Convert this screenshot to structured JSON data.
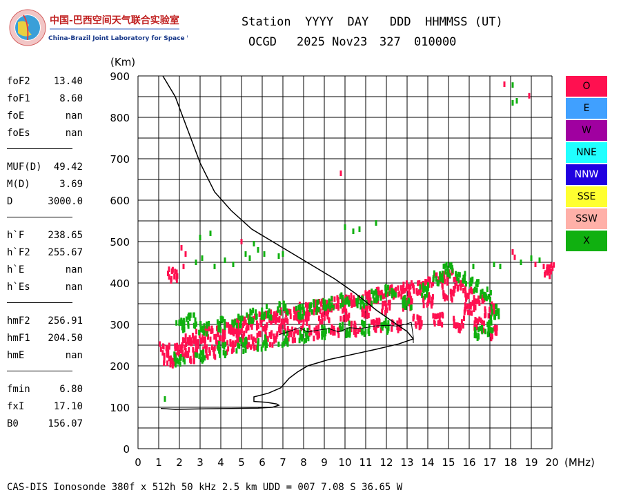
{
  "logo": {
    "title_cn": "中国-巴西空间天气联合实验室",
    "title_en": "China-Brazil Joint Laboratory for Space Weather"
  },
  "header": {
    "line1": "Station  YYYY  DAY   DDD  HHMMSS (UT)",
    "station": "OCGD",
    "date": "2025 Nov23",
    "doy": "327",
    "time": "010000"
  },
  "params": [
    {
      "group": 1,
      "label": "foF2",
      "value": "13.40"
    },
    {
      "group": 1,
      "label": "foF1",
      "value": "8.60"
    },
    {
      "group": 1,
      "label": "foE",
      "value": "nan"
    },
    {
      "group": 1,
      "label": "foEs",
      "value": "nan"
    },
    {
      "group": 2,
      "label": "MUF(D)",
      "value": "49.42"
    },
    {
      "group": 2,
      "label": "M(D)",
      "value": "3.69"
    },
    {
      "group": 2,
      "label": "D",
      "value": "3000.0"
    },
    {
      "group": 3,
      "label": "h`F",
      "value": "238.65"
    },
    {
      "group": 3,
      "label": "h`F2",
      "value": "255.67"
    },
    {
      "group": 3,
      "label": "h`E",
      "value": "nan"
    },
    {
      "group": 3,
      "label": "h`Es",
      "value": "nan"
    },
    {
      "group": 4,
      "label": "hmF2",
      "value": "256.91"
    },
    {
      "group": 4,
      "label": "hmF1",
      "value": "204.50"
    },
    {
      "group": 4,
      "label": "hmE",
      "value": "nan"
    },
    {
      "group": 5,
      "label": "fmin",
      "value": "6.80"
    },
    {
      "group": 5,
      "label": "fxI",
      "value": "17.10"
    },
    {
      "group": 5,
      "label": "B0",
      "value": "156.07"
    }
  ],
  "legend": [
    {
      "label": "O",
      "color": "#ff1050"
    },
    {
      "label": "E",
      "color": "#40a0ff"
    },
    {
      "label": "W",
      "color": "#a000a0"
    },
    {
      "label": "NNE",
      "color": "#20ffff"
    },
    {
      "label": "NNW",
      "color": "#2000e0"
    },
    {
      "label": "SSE",
      "color": "#ffff30"
    },
    {
      "label": "SSW",
      "color": "#ffb0a8"
    },
    {
      "label": "X",
      "color": "#10b010"
    }
  ],
  "footer": "CAS-DIS Ionosonde 380f x 512h 50 kHz 2.5 km UDD = 007 7.08 S 36.65 W",
  "chart_data": {
    "type": "scatter",
    "xlabel": "(MHz)",
    "ylabel": "(Km)",
    "xlim": [
      0,
      20
    ],
    "ylim": [
      0,
      900
    ],
    "xticks": [
      0,
      1,
      2,
      3,
      4,
      5,
      6,
      7,
      8,
      9,
      10,
      11,
      12,
      13,
      14,
      15,
      16,
      17,
      18,
      19,
      20
    ],
    "yticks": [
      0,
      100,
      200,
      300,
      400,
      500,
      600,
      700,
      800,
      900
    ],
    "grid": true,
    "legend_position": "right",
    "series": [
      {
        "name": "O",
        "color": "#ff1050",
        "points": [
          [
            1.3,
            240
          ],
          [
            2.1,
            250
          ],
          [
            2.5,
            262
          ],
          [
            3.0,
            270
          ],
          [
            3.5,
            278
          ],
          [
            4.0,
            285
          ],
          [
            4.5,
            292
          ],
          [
            5.0,
            300
          ],
          [
            5.5,
            305
          ],
          [
            6.0,
            312
          ],
          [
            6.5,
            318
          ],
          [
            7.0,
            322
          ],
          [
            7.5,
            328
          ],
          [
            8.0,
            335
          ],
          [
            8.5,
            340
          ],
          [
            9.0,
            345
          ],
          [
            9.5,
            350
          ],
          [
            10.0,
            355
          ],
          [
            10.5,
            360
          ],
          [
            11.0,
            365
          ],
          [
            11.5,
            370
          ],
          [
            12.0,
            375
          ],
          [
            12.5,
            380
          ],
          [
            13.0,
            385
          ],
          [
            13.5,
            390
          ],
          [
            14.0,
            398
          ],
          [
            14.5,
            405
          ],
          [
            15.0,
            415
          ],
          [
            15.5,
            395
          ],
          [
            16.0,
            375
          ],
          [
            16.5,
            355
          ],
          [
            17.0,
            335
          ],
          [
            1.5,
            215
          ],
          [
            2.5,
            225
          ],
          [
            3.5,
            235
          ],
          [
            4.5,
            245
          ],
          [
            5.5,
            255
          ],
          [
            6.5,
            265
          ],
          [
            7.5,
            275
          ],
          [
            8.5,
            280
          ],
          [
            9.5,
            285
          ],
          [
            10.5,
            290
          ],
          [
            11.5,
            295
          ],
          [
            12.5,
            300
          ],
          [
            13.5,
            305
          ],
          [
            14.5,
            310
          ],
          [
            15.5,
            300
          ],
          [
            16.5,
            300
          ],
          [
            2.0,
            235
          ],
          [
            3.0,
            250
          ],
          [
            4.0,
            262
          ],
          [
            5.0,
            272
          ],
          [
            6.0,
            285
          ],
          [
            7.0,
            295
          ],
          [
            8.0,
            305
          ],
          [
            9.0,
            315
          ],
          [
            10.0,
            322
          ],
          [
            11.0,
            330
          ],
          [
            12.0,
            340
          ],
          [
            13.0,
            350
          ],
          [
            14.0,
            360
          ],
          [
            15.0,
            365
          ],
          [
            16.0,
            340
          ],
          [
            2.1,
            485
          ],
          [
            2.3,
            470
          ],
          [
            2.2,
            440
          ],
          [
            1.7,
            420
          ],
          [
            5.0,
            500
          ],
          [
            9.8,
            665
          ],
          [
            17.7,
            880
          ],
          [
            18.9,
            852
          ],
          [
            18.1,
            475
          ],
          [
            18.2,
            462
          ],
          [
            19.2,
            445
          ],
          [
            19.6,
            440
          ],
          [
            19.9,
            430
          ],
          [
            17.1,
            280
          ]
        ]
      },
      {
        "name": "X",
        "color": "#10b010",
        "points": [
          [
            1.3,
            120
          ],
          [
            2.1,
            300
          ],
          [
            2.6,
            310
          ],
          [
            3.2,
            290
          ],
          [
            4.0,
            300
          ],
          [
            4.8,
            310
          ],
          [
            5.5,
            320
          ],
          [
            6.2,
            330
          ],
          [
            7.0,
            340
          ],
          [
            7.8,
            330
          ],
          [
            8.5,
            340
          ],
          [
            9.2,
            350
          ],
          [
            10.0,
            360
          ],
          [
            10.8,
            355
          ],
          [
            11.5,
            365
          ],
          [
            12.2,
            380
          ],
          [
            13.0,
            350
          ],
          [
            13.8,
            380
          ],
          [
            14.5,
            410
          ],
          [
            15.0,
            430
          ],
          [
            15.6,
            410
          ],
          [
            16.2,
            395
          ],
          [
            16.8,
            375
          ],
          [
            17.3,
            330
          ],
          [
            17.0,
            290
          ],
          [
            16.5,
            280
          ],
          [
            2.0,
            215
          ],
          [
            3.0,
            225
          ],
          [
            4.0,
            240
          ],
          [
            5.0,
            250
          ],
          [
            6.0,
            255
          ],
          [
            7.0,
            265
          ],
          [
            8.0,
            275
          ],
          [
            9.0,
            280
          ],
          [
            10.0,
            288
          ],
          [
            11.0,
            290
          ],
          [
            12.0,
            295
          ],
          [
            3.0,
            510
          ],
          [
            3.5,
            520
          ],
          [
            2.8,
            450
          ],
          [
            3.1,
            460
          ],
          [
            3.7,
            440
          ],
          [
            4.2,
            455
          ],
          [
            4.6,
            445
          ],
          [
            5.2,
            470
          ],
          [
            5.4,
            460
          ],
          [
            5.6,
            495
          ],
          [
            5.8,
            480
          ],
          [
            6.1,
            470
          ],
          [
            6.8,
            465
          ],
          [
            7.0,
            470
          ],
          [
            10.0,
            535
          ],
          [
            10.4,
            525
          ],
          [
            10.7,
            530
          ],
          [
            11.5,
            545
          ],
          [
            16.2,
            440
          ],
          [
            17.2,
            445
          ],
          [
            17.5,
            440
          ],
          [
            18.1,
            835
          ],
          [
            18.3,
            840
          ],
          [
            18.1,
            878
          ],
          [
            18.5,
            450
          ],
          [
            19.0,
            460
          ],
          [
            19.4,
            455
          ]
        ]
      }
    ],
    "trace": [
      [
        1.1,
        97
      ],
      [
        1.8,
        95
      ],
      [
        3.0,
        96
      ],
      [
        4.5,
        97
      ],
      [
        5.8,
        98
      ],
      [
        6.5,
        100
      ],
      [
        6.8,
        105
      ],
      [
        6.7,
        108
      ],
      [
        6.2,
        112
      ],
      [
        5.6,
        114
      ],
      [
        5.6,
        125
      ],
      [
        6.3,
        134
      ],
      [
        6.9,
        147
      ],
      [
        7.3,
        170
      ],
      [
        7.7,
        185
      ],
      [
        8.2,
        200
      ],
      [
        9.2,
        215
      ],
      [
        10.4,
        228
      ],
      [
        11.5,
        240
      ],
      [
        12.6,
        253
      ],
      [
        13.3,
        265
      ],
      [
        13.0,
        283
      ],
      [
        12.5,
        300
      ],
      [
        11.5,
        335
      ],
      [
        10.5,
        375
      ],
      [
        9.5,
        410
      ],
      [
        8.5,
        440
      ],
      [
        7.5,
        470
      ],
      [
        6.5,
        500
      ],
      [
        5.5,
        530
      ],
      [
        4.5,
        575
      ],
      [
        3.7,
        620
      ],
      [
        3.0,
        690
      ],
      [
        2.4,
        770
      ],
      [
        1.8,
        850
      ],
      [
        1.2,
        900
      ]
    ],
    "virtual_trace": [
      [
        6.8,
        275
      ],
      [
        7.3,
        283
      ],
      [
        7.8,
        292
      ],
      [
        8.2,
        282
      ],
      [
        8.7,
        286
      ],
      [
        9.2,
        290
      ],
      [
        9.7,
        282
      ],
      [
        10.2,
        292
      ],
      [
        10.8,
        290
      ],
      [
        11.4,
        296
      ],
      [
        12.0,
        298
      ],
      [
        12.5,
        296
      ],
      [
        12.9,
        300
      ],
      [
        13.2,
        305
      ],
      [
        13.3,
        270
      ],
      [
        13.3,
        255
      ]
    ]
  }
}
